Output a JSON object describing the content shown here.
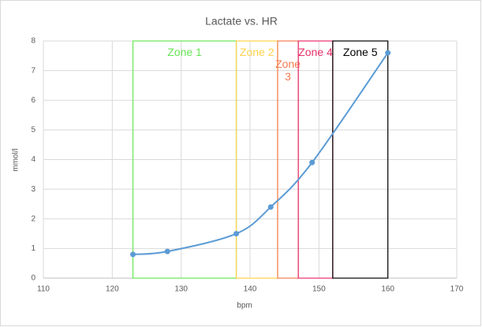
{
  "chart_data": {
    "type": "scatter",
    "title": "Lactate vs. HR",
    "x_label": "bpm",
    "y_label": "mmol/l",
    "series": [
      {
        "name": "Lactate",
        "color": "#5b9bd5",
        "smooth": true,
        "x": [
          123,
          128,
          138,
          143,
          149,
          160
        ],
        "values": [
          0.8,
          0.9,
          1.5,
          2.4,
          3.9,
          7.6
        ]
      }
    ],
    "xlim": [
      110,
      170
    ],
    "xticks": [
      110,
      120,
      130,
      140,
      150,
      160,
      170
    ],
    "ylim": [
      0,
      8
    ],
    "yticks": [
      0,
      1,
      2,
      3,
      4,
      5,
      6,
      7,
      8
    ],
    "grid": true,
    "zones": [
      {
        "name": "Zone 1",
        "x0": 123,
        "x1": 138,
        "color": "#66e655"
      },
      {
        "name": "Zone 2",
        "x0": 138,
        "x1": 144,
        "color": "#ffd24a"
      },
      {
        "name": "Zone 3",
        "x0": 144,
        "x1": 147,
        "color": "#f47b4f"
      },
      {
        "name": "Zone 4",
        "x0": 147,
        "x1": 152,
        "color": "#e8306a"
      },
      {
        "name": "Zone 5",
        "x0": 152,
        "x1": 160,
        "color": "#000000"
      }
    ]
  }
}
